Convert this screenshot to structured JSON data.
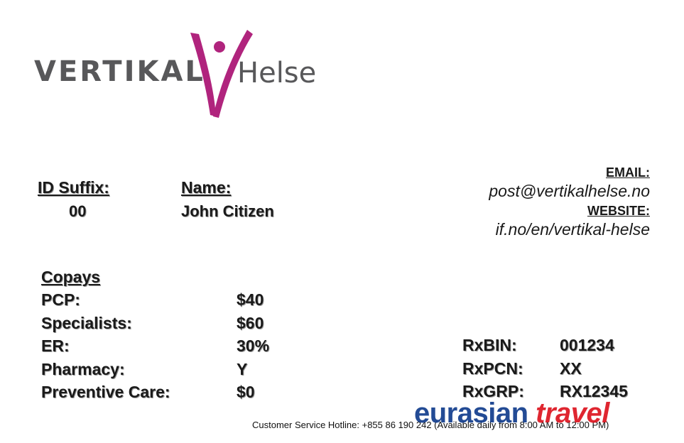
{
  "logo": {
    "brand_left": "VERTIKAL",
    "brand_right": "Helse",
    "figure_color": "#b0247d",
    "text_color": "#58585a"
  },
  "member": {
    "id_suffix_label": "ID Suffix:",
    "id_suffix_value": "00",
    "name_label": "Name:",
    "name_value": "John Citizen"
  },
  "contact": {
    "email_label": "EMAIL:",
    "email_value": "post@vertikalhelse.no",
    "website_label": "WEBSITE:",
    "website_value": "if.no/en/vertikal-helse"
  },
  "copays": {
    "title": "Copays",
    "items": [
      {
        "label": "PCP:",
        "value": "$40"
      },
      {
        "label": "Specialists:",
        "value": "$60"
      },
      {
        "label": "ER:",
        "value": "30%"
      },
      {
        "label": "Pharmacy:",
        "value": "Y"
      },
      {
        "label": "Preventive Care:",
        "value": "$0"
      }
    ]
  },
  "rx": {
    "items": [
      {
        "label": "RxBIN:",
        "value": "001234"
      },
      {
        "label": "RxPCN:",
        "value": "XX"
      },
      {
        "label": "RxGRP:",
        "value": "RX12345"
      }
    ]
  },
  "footer": {
    "hotline": "Customer Service Hotline:  +855 86 190 242 (Available daily from 8:00 AM to 12:00 PM)"
  },
  "watermark": {
    "part1": "eurasian",
    "part2": "travel",
    "color1": "#103c8c",
    "color2": "#dc141e"
  }
}
